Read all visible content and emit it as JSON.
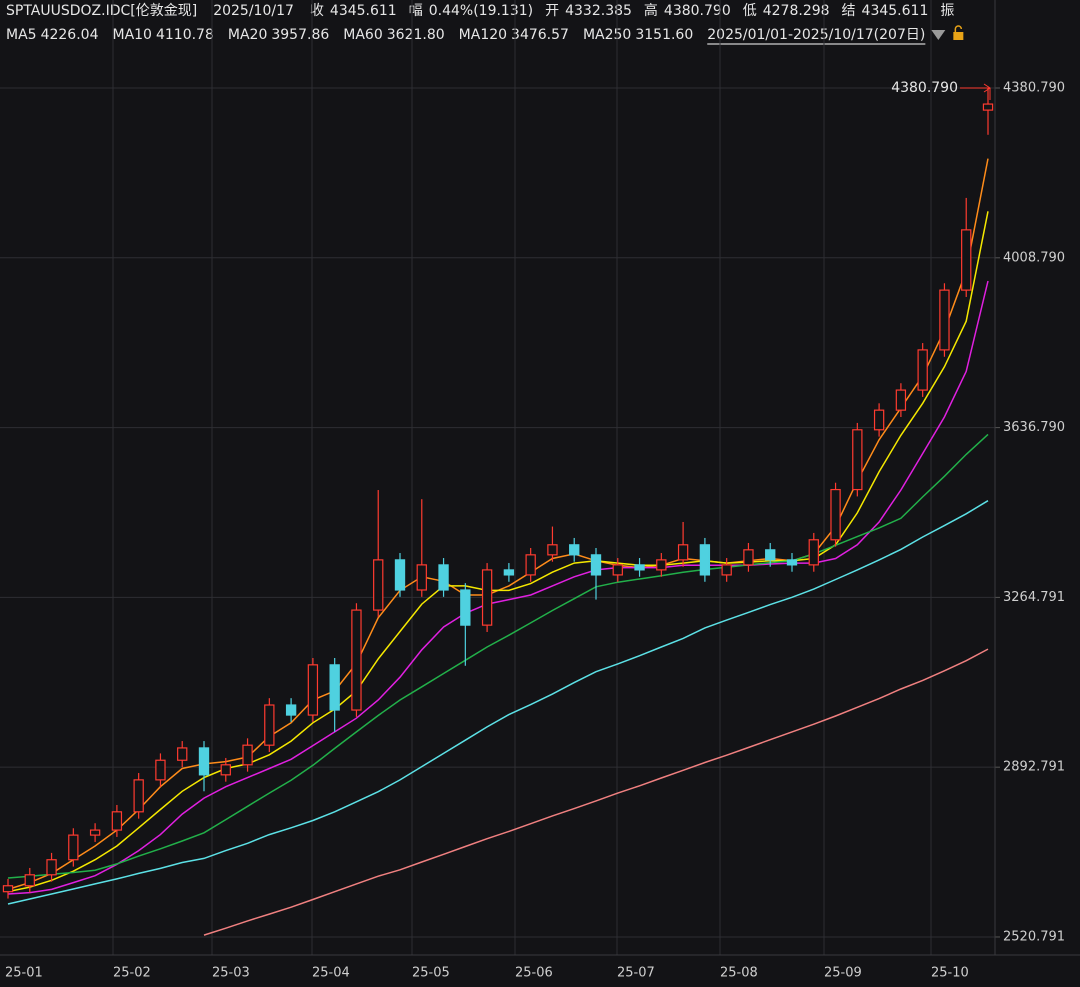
{
  "chart_data": {
    "type": "candlestick",
    "symbol": "SPTAUUSDOZ.IDC[伦敦金现]",
    "date": "2025/10/17",
    "quote": [
      {
        "label": "收",
        "value": "4345.611",
        "color": "#ff3b30"
      },
      {
        "label": "幅",
        "value": "0.44%(19.131)",
        "color": "#ff3b30"
      },
      {
        "label": "开",
        "value": "4332.385",
        "color": "#ff3b30"
      },
      {
        "label": "高",
        "value": "4380.790",
        "color": "#ff3b30"
      },
      {
        "label": "低",
        "value": "4278.298",
        "color": "#2fbf4f"
      },
      {
        "label": "结",
        "value": "4345.611",
        "color": "#ff3b30"
      },
      {
        "label": "振"
      }
    ],
    "range": "2025/01/01-2025/10/17(207日)",
    "months": [
      "25-01",
      "25-02",
      "25-03",
      "25-04",
      "25-05",
      "25-06",
      "25-07",
      "25-08",
      "25-09",
      "25-10"
    ],
    "up_color": "#ff3b30",
    "down_color": "#4fd1e0",
    "open": [
      2620,
      2633,
      2657,
      2690,
      2744,
      2755,
      2795,
      2865,
      2908,
      2935,
      2876,
      2898,
      2941,
      3029,
      3007,
      3117,
      3018,
      3237,
      3347,
      3281,
      3336,
      3281,
      3204,
      3325,
      3314,
      3358,
      3380,
      3358,
      3314,
      3336,
      3325,
      3347,
      3380,
      3314,
      3336,
      3369,
      3347,
      3336,
      3391,
      3501,
      3632,
      3675,
      3719,
      3807,
      3938,
      4332.385
    ],
    "high": [
      2648,
      2672,
      2705,
      2759,
      2770,
      2810,
      2880,
      2923,
      2950,
      2950,
      2913,
      2956,
      3044,
      3044,
      3132,
      3132,
      3252,
      3500,
      3362,
      3480,
      3351,
      3296,
      3340,
      3340,
      3373,
      3420,
      3395,
      3373,
      3351,
      3351,
      3362,
      3430,
      3395,
      3351,
      3384,
      3384,
      3362,
      3406,
      3516,
      3647,
      3690,
      3734,
      3822,
      3953,
      4140,
      4380.79
    ],
    "low": [
      2605,
      2618,
      2642,
      2675,
      2729,
      2740,
      2780,
      2850,
      2893,
      2840,
      2861,
      2883,
      2926,
      2992,
      2992,
      2970,
      3003,
      3222,
      3266,
      3266,
      3266,
      3115,
      3189,
      3299,
      3299,
      3343,
      3343,
      3260,
      3299,
      3310,
      3310,
      3332,
      3299,
      3299,
      3321,
      3332,
      3321,
      3321,
      3376,
      3486,
      3617,
      3660,
      3704,
      3792,
      3923,
      4278.298
    ],
    "close": [
      2633,
      2657,
      2690,
      2744,
      2755,
      2795,
      2865,
      2908,
      2935,
      2876,
      2898,
      2941,
      3029,
      3007,
      3117,
      3018,
      3237,
      3347,
      3281,
      3336,
      3281,
      3204,
      3325,
      3314,
      3358,
      3380,
      3358,
      3314,
      3336,
      3325,
      3347,
      3380,
      3314,
      3336,
      3369,
      3347,
      3336,
      3391,
      3501,
      3632,
      3675,
      3719,
      3807,
      3938,
      4070,
      4345.611
    ],
    "series": [
      {
        "name": "MA5",
        "color": "#ff8c1a",
        "last_label": "4226.04",
        "values": [
          2625,
          2640,
          2660,
          2690,
          2720,
          2755,
          2800,
          2850,
          2890,
          2900,
          2905,
          2915,
          2960,
          2990,
          3040,
          3060,
          3120,
          3220,
          3280,
          3310,
          3300,
          3270,
          3270,
          3290,
          3320,
          3350,
          3360,
          3345,
          3335,
          3330,
          3335,
          3350,
          3345,
          3340,
          3345,
          3350,
          3345,
          3360,
          3420,
          3520,
          3610,
          3680,
          3750,
          3850,
          3980,
          4226.04
        ]
      },
      {
        "name": "MA10",
        "color": "#f5e800",
        "last_label": "4110.78",
        "values": [
          2620,
          2630,
          2645,
          2665,
          2690,
          2720,
          2760,
          2800,
          2840,
          2870,
          2890,
          2900,
          2920,
          2950,
          2990,
          3020,
          3060,
          3130,
          3190,
          3250,
          3290,
          3290,
          3280,
          3280,
          3295,
          3320,
          3340,
          3345,
          3340,
          3335,
          3335,
          3340,
          3345,
          3340,
          3342,
          3345,
          3345,
          3350,
          3380,
          3450,
          3540,
          3620,
          3690,
          3770,
          3870,
          4110.78
        ]
      },
      {
        "name": "MA20",
        "color": "#e020e0",
        "last_label": "3957.86",
        "values": [
          2615,
          2618,
          2625,
          2640,
          2655,
          2680,
          2710,
          2745,
          2790,
          2825,
          2850,
          2870,
          2890,
          2910,
          2940,
          2970,
          3000,
          3040,
          3090,
          3150,
          3200,
          3230,
          3250,
          3260,
          3270,
          3290,
          3310,
          3325,
          3330,
          3330,
          3330,
          3335,
          3335,
          3335,
          3335,
          3338,
          3340,
          3340,
          3350,
          3380,
          3430,
          3500,
          3580,
          3660,
          3760,
          3957.86
        ]
      },
      {
        "name": "MA60",
        "color": "#22b04a",
        "last_label": "3621.80",
        "values": [
          2650,
          2654,
          2658,
          2662,
          2667,
          2681,
          2698,
          2714,
          2731,
          2749,
          2778,
          2807,
          2836,
          2864,
          2897,
          2934,
          2970,
          3006,
          3040,
          3069,
          3098,
          3127,
          3156,
          3182,
          3209,
          3236,
          3262,
          3288,
          3298,
          3305,
          3312,
          3320,
          3326,
          3331,
          3336,
          3341,
          3345,
          3360,
          3379,
          3398,
          3417,
          3438,
          3485,
          3530,
          3578,
          3621.8
        ]
      },
      {
        "name": "MA120",
        "color": "#5ce1e6",
        "last_label": "3476.57",
        "values": [
          2593,
          2604,
          2615,
          2626,
          2637,
          2648,
          2660,
          2671,
          2684,
          2693,
          2710,
          2726,
          2745,
          2760,
          2776,
          2795,
          2817,
          2839,
          2865,
          2894,
          2923,
          2952,
          2981,
          3008,
          3030,
          3053,
          3078,
          3102,
          3119,
          3137,
          3156,
          3175,
          3198,
          3215,
          3232,
          3249,
          3265,
          3283,
          3304,
          3325,
          3347,
          3370,
          3397,
          3422,
          3448,
          3476.57
        ]
      },
      {
        "name": "MA250",
        "color": "#f08080",
        "last_label": "3151.60",
        "values": [
          null,
          null,
          null,
          null,
          null,
          null,
          null,
          null,
          null,
          2525,
          2540,
          2556,
          2571,
          2586,
          2603,
          2620,
          2637,
          2654,
          2668,
          2685,
          2702,
          2719,
          2736,
          2752,
          2769,
          2786,
          2802,
          2819,
          2836,
          2852,
          2869,
          2886,
          2903,
          2919,
          2936,
          2953,
          2970,
          2987,
          3005,
          3024,
          3043,
          3064,
          3083,
          3104,
          3126,
          3151.6
        ]
      }
    ],
    "annotation": {
      "value": 4380.79,
      "label": "4380.790",
      "color": "#ff3b30"
    },
    "ylim": [
      2481.3,
      4503.5
    ],
    "yticks": [
      {
        "value": 4380.79,
        "label": "4380.790"
      },
      {
        "value": 4008.79,
        "label": "4008.790"
      },
      {
        "value": 3636.79,
        "label": "3636.790"
      },
      3264.791,
      2892.791,
      2520.791
    ],
    "grid": true
  }
}
